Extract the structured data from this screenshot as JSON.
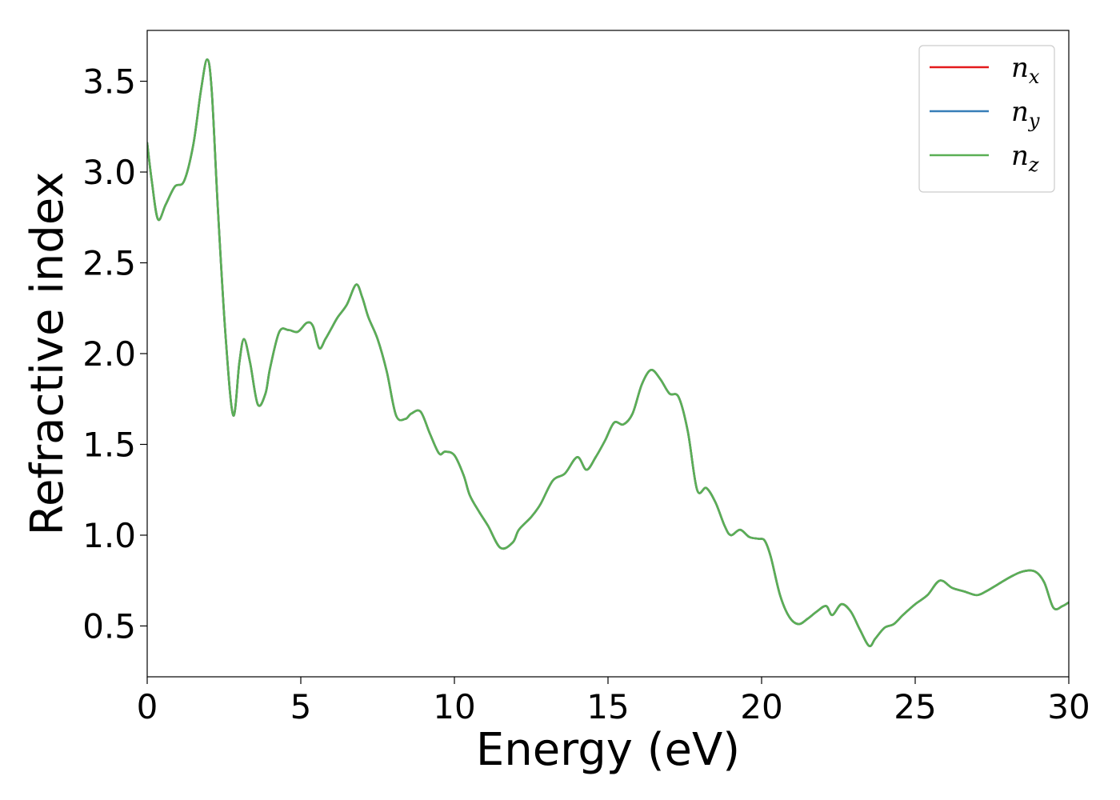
{
  "chart_data": {
    "type": "line",
    "xlabel": "Energy (eV)",
    "ylabel": "Refractive index",
    "xlim": [
      0,
      30
    ],
    "ylim": [
      0.22,
      3.78
    ],
    "xticks": [
      0,
      5,
      10,
      15,
      20,
      25,
      30
    ],
    "yticks": [
      0.5,
      1.0,
      1.5,
      2.0,
      2.5,
      3.0,
      3.5
    ],
    "legend_position": "top-right",
    "x": [
      0,
      0.15,
      0.35,
      0.6,
      0.9,
      1.2,
      1.5,
      1.75,
      1.95,
      2.1,
      2.3,
      2.55,
      2.8,
      3.0,
      3.15,
      3.35,
      3.6,
      3.85,
      4.0,
      4.3,
      4.6,
      4.9,
      5.2,
      5.4,
      5.6,
      5.8,
      6.0,
      6.2,
      6.5,
      6.8,
      7.0,
      7.2,
      7.5,
      7.8,
      8.1,
      8.4,
      8.6,
      8.9,
      9.2,
      9.5,
      9.7,
      10.0,
      10.3,
      10.5,
      10.8,
      11.1,
      11.5,
      11.9,
      12.1,
      12.5,
      12.8,
      13.2,
      13.6,
      14.0,
      14.3,
      14.6,
      14.9,
      15.2,
      15.5,
      15.8,
      16.1,
      16.4,
      16.7,
      17.0,
      17.3,
      17.6,
      17.9,
      18.2,
      18.5,
      18.8,
      19.0,
      19.3,
      19.6,
      19.9,
      20.1,
      20.3,
      20.6,
      20.9,
      21.2,
      21.5,
      21.8,
      22.1,
      22.3,
      22.6,
      22.9,
      23.2,
      23.5,
      23.7,
      24.0,
      24.3,
      24.6,
      25.0,
      25.4,
      25.8,
      26.2,
      26.6,
      27.0,
      27.3,
      27.7,
      28.1,
      28.5,
      28.9,
      29.2,
      29.5,
      29.8,
      30.0
    ],
    "series": [
      {
        "name": "n_x",
        "label_base": "n",
        "label_sub": "x",
        "color": "#e41a1c",
        "values": [
          3.16,
          2.95,
          2.74,
          2.82,
          2.92,
          2.95,
          3.15,
          3.45,
          3.62,
          3.45,
          2.8,
          2.1,
          1.66,
          1.95,
          2.08,
          1.95,
          1.72,
          1.78,
          1.92,
          2.12,
          2.13,
          2.12,
          2.17,
          2.15,
          2.03,
          2.08,
          2.14,
          2.2,
          2.27,
          2.38,
          2.31,
          2.2,
          2.08,
          1.9,
          1.66,
          1.64,
          1.67,
          1.68,
          1.56,
          1.45,
          1.46,
          1.44,
          1.33,
          1.22,
          1.13,
          1.05,
          0.93,
          0.96,
          1.03,
          1.1,
          1.17,
          1.3,
          1.34,
          1.43,
          1.36,
          1.43,
          1.52,
          1.62,
          1.61,
          1.67,
          1.83,
          1.91,
          1.86,
          1.78,
          1.76,
          1.57,
          1.25,
          1.26,
          1.18,
          1.05,
          1.0,
          1.03,
          0.99,
          0.98,
          0.97,
          0.88,
          0.67,
          0.55,
          0.51,
          0.54,
          0.58,
          0.61,
          0.56,
          0.62,
          0.58,
          0.48,
          0.39,
          0.43,
          0.49,
          0.51,
          0.56,
          0.62,
          0.67,
          0.75,
          0.71,
          0.69,
          0.67,
          0.69,
          0.73,
          0.77,
          0.8,
          0.8,
          0.74,
          0.6,
          0.61,
          0.63
        ]
      },
      {
        "name": "n_y",
        "label_base": "n",
        "label_sub": "y",
        "color": "#377eb8",
        "values": [
          3.16,
          2.95,
          2.74,
          2.82,
          2.92,
          2.95,
          3.15,
          3.45,
          3.62,
          3.45,
          2.8,
          2.1,
          1.66,
          1.95,
          2.08,
          1.95,
          1.72,
          1.78,
          1.92,
          2.12,
          2.13,
          2.12,
          2.17,
          2.15,
          2.03,
          2.08,
          2.14,
          2.2,
          2.27,
          2.38,
          2.31,
          2.2,
          2.08,
          1.9,
          1.66,
          1.64,
          1.67,
          1.68,
          1.56,
          1.45,
          1.46,
          1.44,
          1.33,
          1.22,
          1.13,
          1.05,
          0.93,
          0.96,
          1.03,
          1.1,
          1.17,
          1.3,
          1.34,
          1.43,
          1.36,
          1.43,
          1.52,
          1.62,
          1.61,
          1.67,
          1.83,
          1.91,
          1.86,
          1.78,
          1.76,
          1.57,
          1.25,
          1.26,
          1.18,
          1.05,
          1.0,
          1.03,
          0.99,
          0.98,
          0.97,
          0.88,
          0.67,
          0.55,
          0.51,
          0.54,
          0.58,
          0.61,
          0.56,
          0.62,
          0.58,
          0.48,
          0.39,
          0.43,
          0.49,
          0.51,
          0.56,
          0.62,
          0.67,
          0.75,
          0.71,
          0.69,
          0.67,
          0.69,
          0.73,
          0.77,
          0.8,
          0.8,
          0.74,
          0.6,
          0.61,
          0.63
        ]
      },
      {
        "name": "n_z",
        "label_base": "n",
        "label_sub": "z",
        "color": "#5aaf55",
        "values": [
          3.16,
          2.95,
          2.74,
          2.82,
          2.92,
          2.95,
          3.15,
          3.45,
          3.62,
          3.45,
          2.8,
          2.1,
          1.66,
          1.95,
          2.08,
          1.95,
          1.72,
          1.78,
          1.92,
          2.12,
          2.13,
          2.12,
          2.17,
          2.15,
          2.03,
          2.08,
          2.14,
          2.2,
          2.27,
          2.38,
          2.31,
          2.2,
          2.08,
          1.9,
          1.66,
          1.64,
          1.67,
          1.68,
          1.56,
          1.45,
          1.46,
          1.44,
          1.33,
          1.22,
          1.13,
          1.05,
          0.93,
          0.96,
          1.03,
          1.1,
          1.17,
          1.3,
          1.34,
          1.43,
          1.36,
          1.43,
          1.52,
          1.62,
          1.61,
          1.67,
          1.83,
          1.91,
          1.86,
          1.78,
          1.76,
          1.57,
          1.25,
          1.26,
          1.18,
          1.05,
          1.0,
          1.03,
          0.99,
          0.98,
          0.97,
          0.88,
          0.67,
          0.55,
          0.51,
          0.54,
          0.58,
          0.61,
          0.56,
          0.62,
          0.58,
          0.48,
          0.39,
          0.43,
          0.49,
          0.51,
          0.56,
          0.62,
          0.67,
          0.75,
          0.71,
          0.69,
          0.67,
          0.69,
          0.73,
          0.77,
          0.8,
          0.8,
          0.74,
          0.6,
          0.61,
          0.63
        ]
      }
    ]
  }
}
